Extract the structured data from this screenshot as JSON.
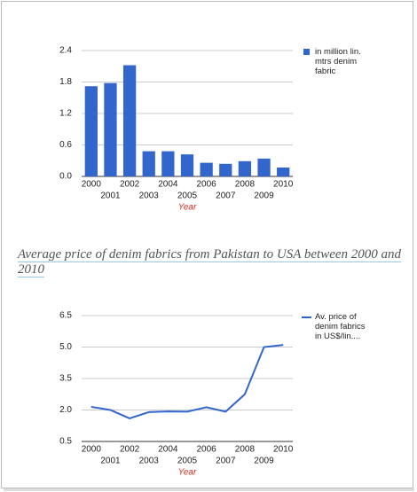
{
  "heading": "Average price of denim fabrics from Pakistan to USA between 2000 and 2010",
  "chart_data": [
    {
      "type": "bar",
      "x_label": "Year",
      "categories": [
        "2000",
        "2001",
        "2002",
        "2003",
        "2004",
        "2005",
        "2006",
        "2007",
        "2008",
        "2009",
        "2010"
      ],
      "series": [
        {
          "name": "in million lin. mtrs denim fabric",
          "color": "#3366cc",
          "values": [
            1.72,
            1.78,
            2.12,
            0.48,
            0.48,
            0.42,
            0.26,
            0.24,
            0.29,
            0.34,
            0.17
          ]
        }
      ],
      "ylim": [
        0,
        2.4
      ],
      "yticks": [
        {
          "value": 0,
          "label": "0.0"
        },
        0.6,
        1.2,
        1.8,
        2.4
      ],
      "grid": true
    },
    {
      "type": "line",
      "x_label": "Year",
      "categories": [
        "2000",
        "2001",
        "2002",
        "2003",
        "2004",
        "2005",
        "2006",
        "2007",
        "2008",
        "2009",
        "2010"
      ],
      "series": [
        {
          "name": "Av. price of denim fabrics in US$/lin....",
          "color": "#3366cc",
          "values": [
            2.15,
            2.0,
            1.6,
            1.9,
            1.93,
            1.92,
            2.13,
            1.92,
            2.75,
            5.0,
            5.1
          ]
        }
      ],
      "ylim": [
        0.5,
        6.5
      ],
      "yticks": [
        0.5,
        {
          "value": 2,
          "label": "2.0"
        },
        3.5,
        {
          "value": 5,
          "label": "5.0"
        },
        6.5
      ],
      "grid": true
    }
  ]
}
